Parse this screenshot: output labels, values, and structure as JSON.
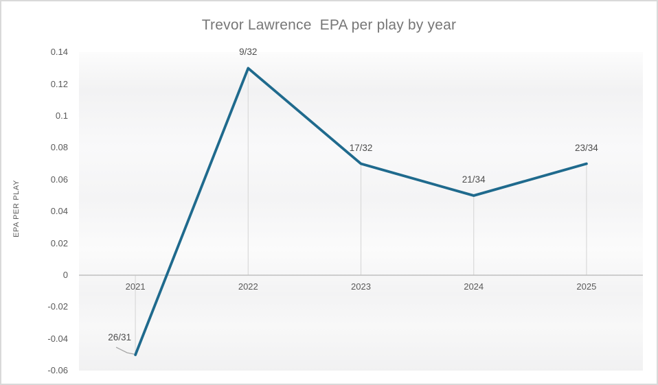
{
  "chart": {
    "title": "Trevor Lawrence  EPA per play by year",
    "y_axis_title": "EPA PER PLAY"
  },
  "chart_data": {
    "type": "line",
    "title": "Trevor Lawrence EPA per play by year",
    "xlabel": "",
    "ylabel": "EPA PER PLAY",
    "categories": [
      "2021",
      "2022",
      "2023",
      "2024",
      "2025"
    ],
    "series": [
      {
        "name": "EPA per play",
        "values": [
          -0.05,
          0.13,
          0.07,
          0.05,
          0.07
        ],
        "point_labels": [
          "26/31",
          "9/32",
          "17/32",
          "21/34",
          "23/34"
        ]
      }
    ],
    "ylim": [
      -0.06,
      0.14
    ],
    "ytick_values": [
      0.14,
      0.12,
      0.1,
      0.08,
      0.06,
      0.04,
      0.02,
      0,
      -0.02,
      -0.04,
      -0.06
    ],
    "ytick_labels": [
      "0.14",
      "0.12",
      "0.1",
      "0.08",
      "0.06",
      "0.04",
      "0.02",
      "0",
      "-0.02",
      "-0.04",
      "-0.06"
    ],
    "grid": false,
    "legend": false,
    "drop_lines": true,
    "label_positions": [
      "left-leader",
      "above",
      "above",
      "above",
      "above"
    ],
    "colors": {
      "line": "#1F6A8D",
      "axis_line": "#BFBFBF",
      "drop_line": "#D9D9D9",
      "leader_line": "#A6A6A6",
      "title_text": "#767676",
      "tick_text": "#595959",
      "point_label_text": "#4D4D4D",
      "frame_border": "#D9D9D9"
    }
  }
}
